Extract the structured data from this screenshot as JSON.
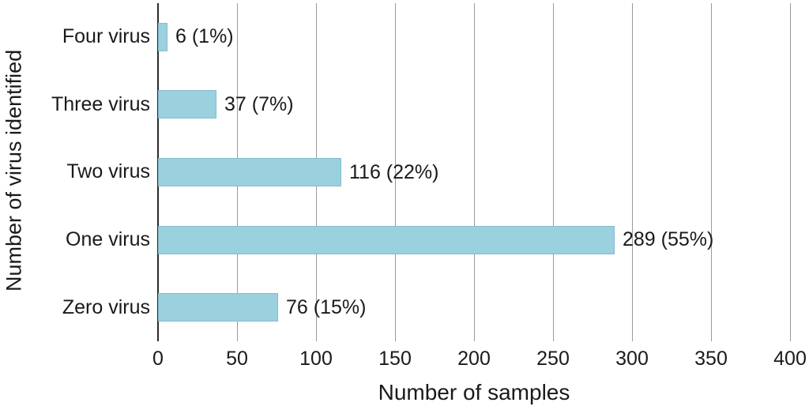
{
  "chart_data": {
    "type": "bar",
    "orientation": "horizontal",
    "title": "",
    "xlabel": "Number of samples",
    "ylabel": "Number of virus identified",
    "categories": [
      "Four virus",
      "Three virus",
      "Two virus",
      "One virus",
      "Zero virus"
    ],
    "values": [
      6,
      37,
      116,
      289,
      76
    ],
    "value_labels": [
      "6 (1%)",
      "37 (7%)",
      "116 (22%)",
      "289 (55%)",
      "76 (15%)"
    ],
    "xlim": [
      0,
      400
    ],
    "xticks": [
      0,
      50,
      100,
      150,
      200,
      250,
      300,
      350,
      400
    ],
    "grid": true,
    "legend": "none",
    "bar_color": "#9bd0de",
    "bar_border_color": "#85bccc",
    "grid_color": "#9b9b9b",
    "axis_color": "#2b2b2b"
  }
}
